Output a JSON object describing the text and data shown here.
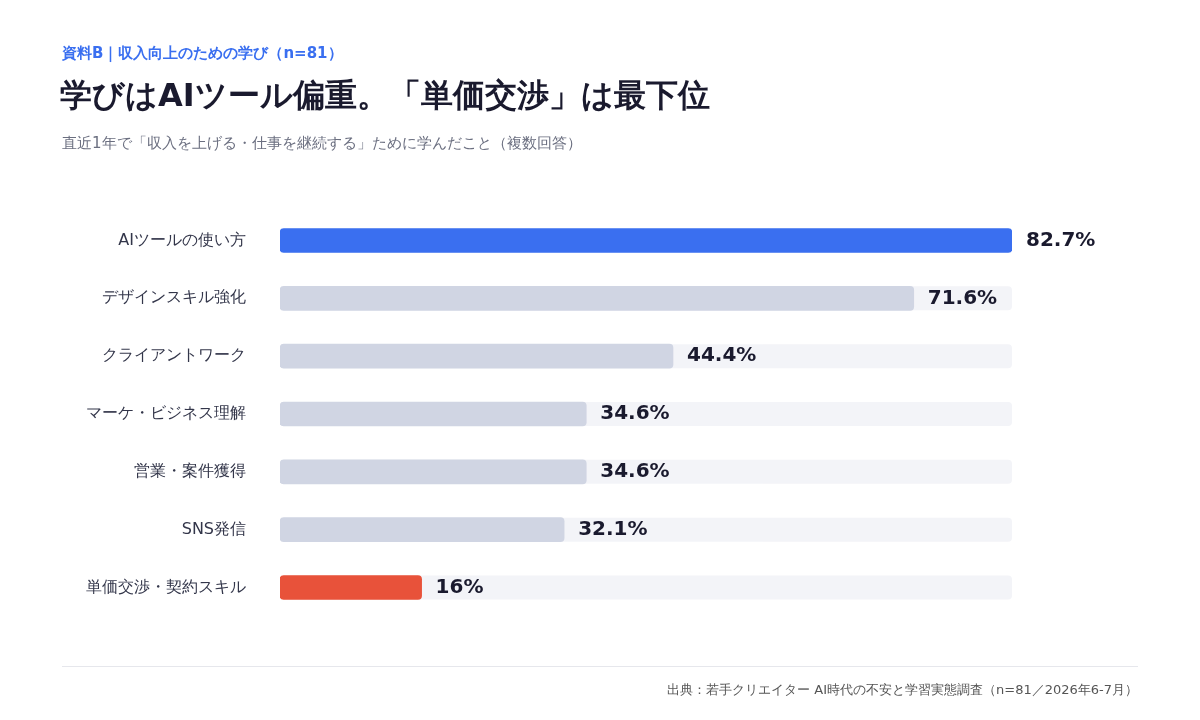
{
  "chart_data": {
    "type": "bar",
    "orientation": "horizontal",
    "title": "学びはAIツール偏重。「単価交渉」は最下位",
    "subtitle": "直近1年で「収入を上げる・仕事を継続する」ために学んだこと（複数回答）",
    "categories": [
      "AIツールの使い方",
      "デザインスキル強化",
      "クライアントワーク",
      "マーケ・ビジネス理解",
      "営業・案件獲得",
      "SNS発信",
      "単価交渉・契約スキル"
    ],
    "values": [
      82.7,
      71.6,
      44.4,
      34.6,
      34.6,
      32.1,
      16
    ],
    "value_labels": [
      "82.7%",
      "71.6%",
      "44.4%",
      "34.6%",
      "34.6%",
      "32.1%",
      "16%"
    ],
    "colors": [
      "#3a6ff0",
      "#d0d5e3",
      "#d0d5e3",
      "#d0d5e3",
      "#d0d5e3",
      "#d0d5e3",
      "#e8523a"
    ],
    "xlim": [
      0,
      82.7
    ],
    "legend": false,
    "tick_labels": "y",
    "annotations": [
      "資料B｜収入向上のための学び（n=81）",
      "出典：若手クリエイター AI時代の不安と学習実態調査（n=81／2026年6-7月）"
    ]
  }
}
